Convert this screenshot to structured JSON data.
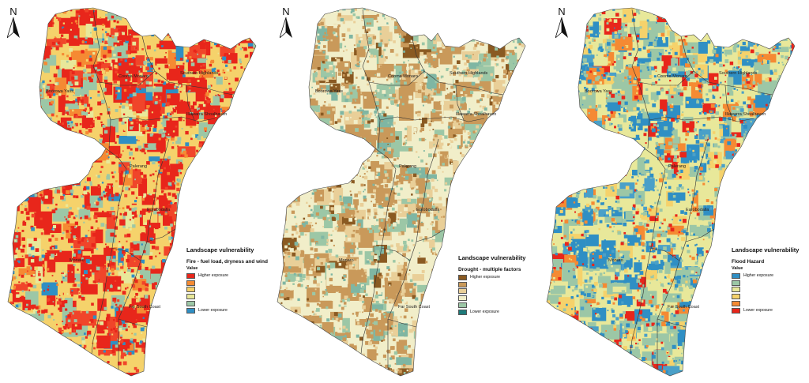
{
  "north_label": "N",
  "regions": {
    "bogong_yass": "Boorowa Yass",
    "queanbeyan": "Queanbeyan Palerang",
    "goulburn": "Goulburn Mulwaree",
    "southern_highlands": "Southern Highlands",
    "shoalhaven": "Illawarra Shoalhaven",
    "palerang": "Palerang",
    "eurobodalla": "Eurobodalla",
    "monaro": "Monaro",
    "far_south_coast": "Far South Coast",
    "cooma": "Cooma Monaro"
  },
  "maps": [
    {
      "legend_title": "Landscape vulnerability",
      "legend_subtitle": "Fire - fuel load, dryness and wind",
      "legend_value": "Value",
      "top_label": "Higher exposure",
      "bottom_label": "Lower exposure",
      "swatches": [
        "#e8261b",
        "#f58a33",
        "#f5d26b",
        "#e8e89a",
        "#9cc7a6",
        "#2f8fc4"
      ],
      "palette": [
        "#e8261b",
        "#f0452a",
        "#f58a33",
        "#f5d26b",
        "#e8e89a",
        "#9cc7a6",
        "#2f8fc4"
      ],
      "weights": [
        0.42,
        0.12,
        0.08,
        0.07,
        0.06,
        0.17,
        0.08
      ]
    },
    {
      "legend_title": "Landscape vulnerability",
      "legend_subtitle": "Drought - multiple factors",
      "legend_value": "",
      "top_label": "Higher exposure",
      "bottom_label": "Lower exposure",
      "swatches": [
        "#8a5a22",
        "#c9995a",
        "#e9cf98",
        "#f1eec9",
        "#9cc7a6",
        "#1d7a7a"
      ],
      "palette": [
        "#8a5a22",
        "#c9995a",
        "#e9cf98",
        "#f1eec9",
        "#9cc7a6",
        "#7fb6a3"
      ],
      "weights": [
        0.05,
        0.32,
        0.2,
        0.15,
        0.18,
        0.1
      ]
    },
    {
      "legend_title": "Landscape vulnerability",
      "legend_subtitle": "Flood Hazard",
      "legend_value": "Value",
      "top_label": "Higher exposure",
      "bottom_label": "Lower exposure",
      "swatches": [
        "#2f8fc4",
        "#9cc7a6",
        "#e8e89a",
        "#f5d26b",
        "#f58a33",
        "#e8261b"
      ],
      "palette": [
        "#2f8fc4",
        "#4aa0c8",
        "#9cc7a6",
        "#e8e89a",
        "#f5d26b",
        "#f58a33",
        "#e8261b"
      ],
      "weights": [
        0.24,
        0.08,
        0.3,
        0.1,
        0.07,
        0.1,
        0.11
      ]
    }
  ]
}
